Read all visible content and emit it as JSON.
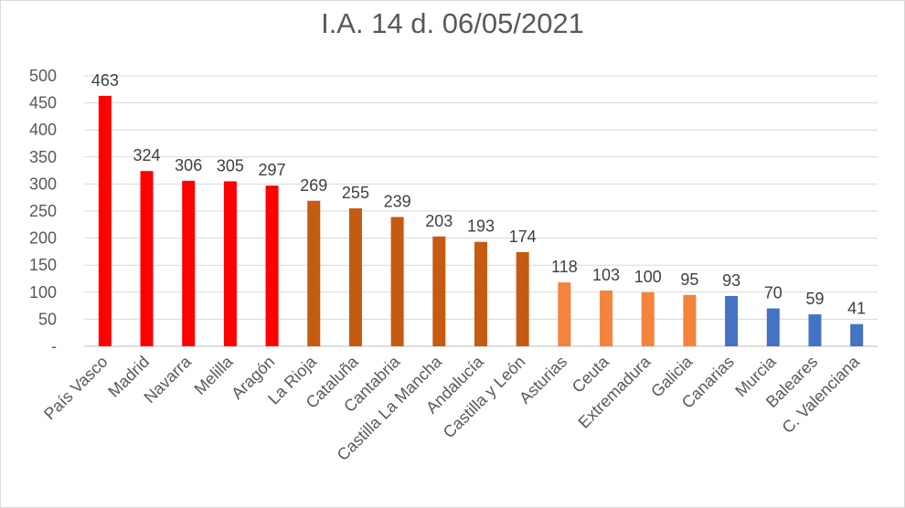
{
  "chart_data": {
    "type": "bar",
    "title": "I.A. 14 d. 06/05/2021",
    "xlabel": "",
    "ylabel": "",
    "ylim": [
      0,
      500
    ],
    "y_ticks": [
      "-",
      "50",
      "100",
      "150",
      "200",
      "250",
      "300",
      "350",
      "400",
      "450",
      "500"
    ],
    "grid": true,
    "legend": "none",
    "categories": [
      "País Vasco",
      "Madrid",
      "Navarra",
      "Melilla",
      "Aragón",
      "La Rioja",
      "Cataluña",
      "Cantabria",
      "Castilla La Mancha",
      "Andalucía",
      "Castilla y León",
      "Asturias",
      "Ceuta",
      "Extremadura",
      "Galicia",
      "Canarias",
      "Murcia",
      "Baleares",
      "C. Valenciana"
    ],
    "values": [
      463,
      324,
      306,
      305,
      297,
      269,
      255,
      239,
      203,
      193,
      174,
      118,
      103,
      100,
      95,
      93,
      70,
      59,
      41
    ],
    "bar_colors": [
      "#ff0000",
      "#ff0000",
      "#ff0000",
      "#ff0000",
      "#ff0000",
      "#c55a11",
      "#c55a11",
      "#c55a11",
      "#c55a11",
      "#c55a11",
      "#c55a11",
      "#f4833c",
      "#f4833c",
      "#f4833c",
      "#f4833c",
      "#4472c4",
      "#4472c4",
      "#4472c4",
      "#4472c4"
    ]
  }
}
